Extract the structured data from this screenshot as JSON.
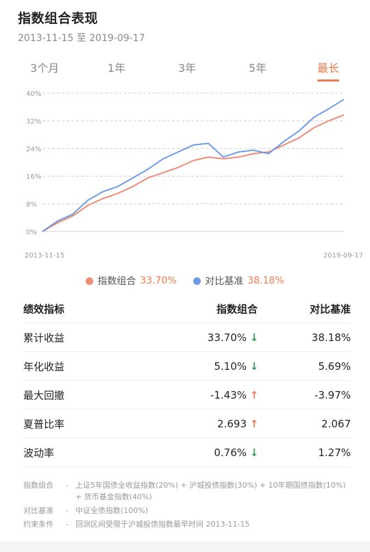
{
  "header": {
    "title": "指数组合表现",
    "date_range": "2013-11-15 至 2019-09-17"
  },
  "tabs": [
    {
      "label": "3个月",
      "active": false
    },
    {
      "label": "1年",
      "active": false
    },
    {
      "label": "3年",
      "active": false
    },
    {
      "label": "5年",
      "active": false
    },
    {
      "label": "最长",
      "active": true
    }
  ],
  "legend": [
    {
      "name": "指数组合",
      "value": "33.70%",
      "color": "#ee8b76"
    },
    {
      "name": "对比基准",
      "value": "38.18%",
      "color": "#6f9be6"
    }
  ],
  "chart_data": {
    "type": "line",
    "x_start_label": "2013-11-15",
    "x_end_label": "2019-09-17",
    "y_ticks": [
      "40%",
      "32%",
      "24%",
      "16%",
      "8%",
      "0%"
    ],
    "ylim": [
      0,
      40
    ],
    "grid": "horizontal dashed",
    "x": [
      0,
      5,
      10,
      15,
      20,
      25,
      30,
      35,
      40,
      45,
      50,
      55,
      60,
      65,
      70,
      75,
      80,
      85,
      90,
      95,
      100
    ],
    "series": [
      {
        "name": "指数组合",
        "color": "#ee8b76",
        "values": [
          0,
          2.5,
          4.5,
          7.5,
          9.5,
          11,
          13,
          15.5,
          17,
          18.5,
          20.5,
          21.5,
          21,
          21.5,
          22.5,
          23,
          25,
          27,
          30,
          32,
          33.7
        ]
      },
      {
        "name": "对比基准",
        "color": "#6f9be6",
        "values": [
          0,
          3,
          5,
          9,
          11.5,
          13,
          15.5,
          18,
          21,
          23,
          25,
          25.5,
          21.5,
          23,
          23.5,
          22.5,
          26,
          29,
          33,
          35.5,
          38.18
        ]
      }
    ]
  },
  "table": {
    "headers": [
      "绩效指标",
      "指数组合",
      "对比基准"
    ],
    "rows": [
      {
        "name": "累计收益",
        "portfolio": "33.70%",
        "arrow": "↓",
        "dir": "down",
        "benchmark": "38.18%"
      },
      {
        "name": "年化收益",
        "portfolio": "5.10%",
        "arrow": "↓",
        "dir": "down",
        "benchmark": "5.69%"
      },
      {
        "name": "最大回撤",
        "portfolio": "-1.43%",
        "arrow": "↑",
        "dir": "up",
        "benchmark": "-3.97%"
      },
      {
        "name": "夏普比率",
        "portfolio": "2.693",
        "arrow": "↑",
        "dir": "up",
        "benchmark": "2.067"
      },
      {
        "name": "波动率",
        "portfolio": "0.76%",
        "arrow": "↓",
        "dir": "down",
        "benchmark": "1.27%"
      }
    ]
  },
  "notes": [
    {
      "key": "指数组合",
      "sep": "-",
      "value": "上证5年国债全收益指数(20%) + 沪城投债指数(30%) + 10年期国债指数(10%) + 货币基金指数(40%)"
    },
    {
      "key": "对比基准",
      "sep": "-",
      "value": "中证全债指数(100%)"
    },
    {
      "key": "约束条件",
      "sep": "-",
      "value": "回测区间受限于沪城投债指数最早时间 2013-11-15"
    }
  ]
}
